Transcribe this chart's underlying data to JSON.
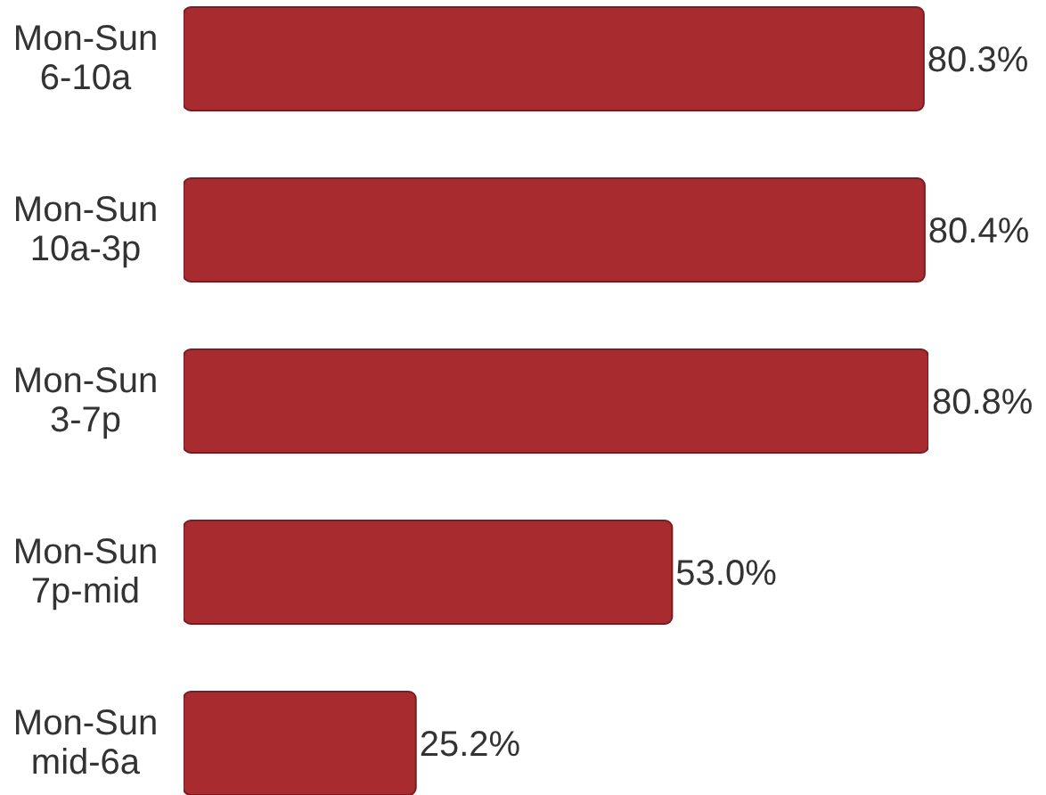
{
  "chart_data": {
    "type": "bar",
    "orientation": "horizontal",
    "categories": [
      "Mon-Sun\n6-10a",
      "Mon-Sun\n10a-3p",
      "Mon-Sun\n3-7p",
      "Mon-Sun\n7p-mid",
      "Mon-Sun\nmid-6a"
    ],
    "values": [
      80.3,
      80.4,
      80.8,
      53.0,
      25.2
    ],
    "color": "#a82c2f",
    "value_labels": [
      "80.3%",
      "80.4%",
      "80.8%",
      "53.0%",
      "25.2%"
    ],
    "tick_labels": "y"
  }
}
